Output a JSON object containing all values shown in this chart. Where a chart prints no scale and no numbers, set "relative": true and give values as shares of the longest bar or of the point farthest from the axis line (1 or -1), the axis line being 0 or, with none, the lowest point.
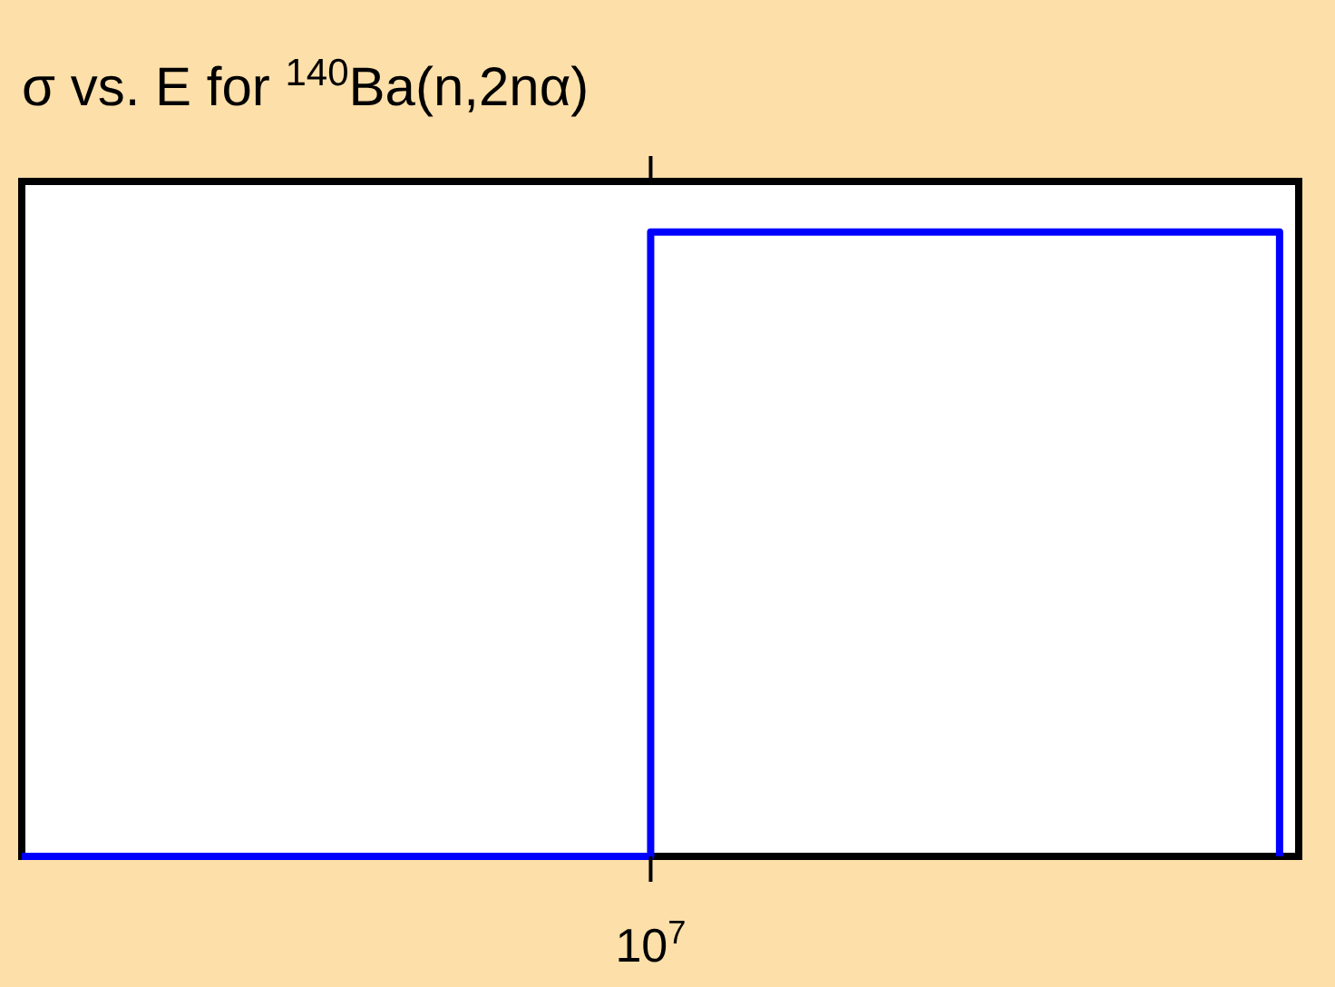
{
  "chart_data": {
    "type": "step",
    "title": "σ vs. E for $^{140}$Ba(n,2nα)",
    "relative": true,
    "categories": [
      null,
      null,
      null
    ],
    "values": [
      0,
      1,
      0
    ],
    "color": "#0000ff",
    "annotations": [
      "10$^{7}$"
    ]
  }
}
